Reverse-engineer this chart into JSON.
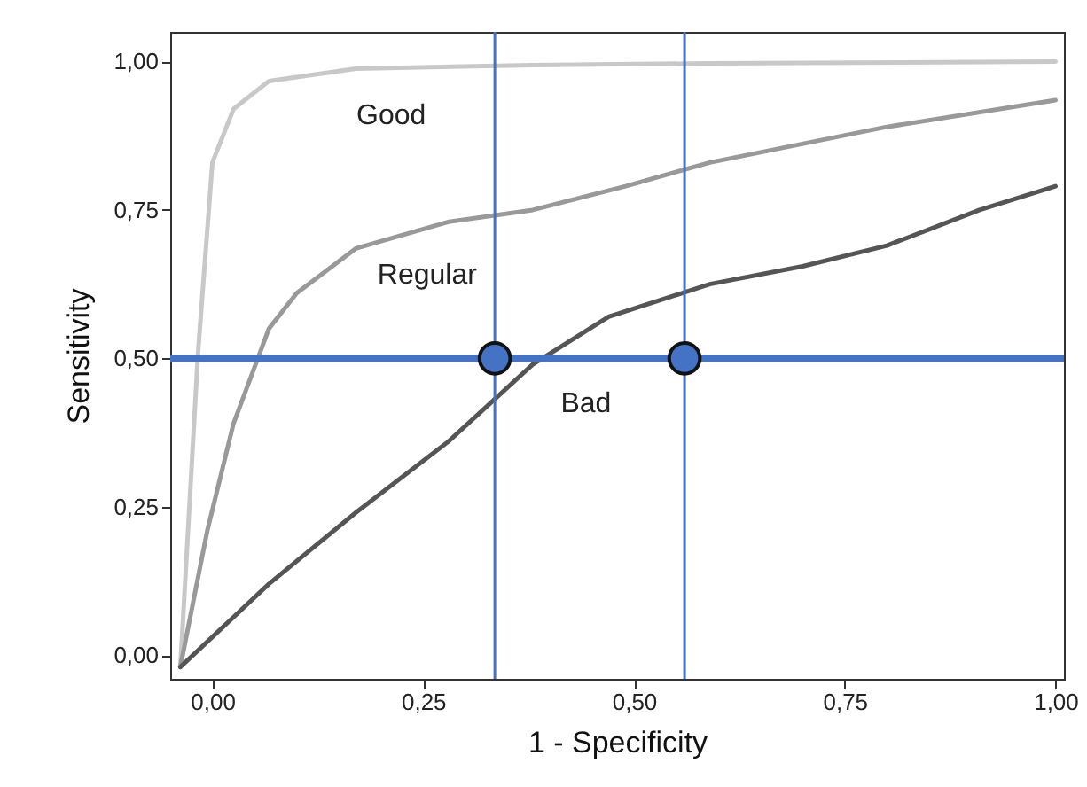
{
  "chart_data": {
    "type": "line",
    "xlabel": "1 - Specificity",
    "ylabel": "Sensitivity",
    "xlim": [
      -0.05,
      1.01
    ],
    "ylim": [
      -0.04,
      1.05
    ],
    "xticks": [
      {
        "value": 0,
        "label": "0,00"
      },
      {
        "value": 0.25,
        "label": "0,25"
      },
      {
        "value": 0.5,
        "label": "0,50"
      },
      {
        "value": 0.75,
        "label": "0,75"
      },
      {
        "value": 1,
        "label": "1,00"
      }
    ],
    "yticks": [
      {
        "value": 0,
        "label": "0,00"
      },
      {
        "value": 0.25,
        "label": "0,25"
      },
      {
        "value": 0.5,
        "label": "0,50"
      },
      {
        "value": 0.75,
        "label": "0,75"
      },
      {
        "value": 1,
        "label": "1,00"
      }
    ],
    "grid": false,
    "series": [
      {
        "name": "Good",
        "color": "#c8c8c8",
        "x": [
          -0.038,
          -0.017,
          0,
          0.025,
          0.067,
          0.17,
          0.38,
          0.59,
          1.0
        ],
        "values": [
          -0.02,
          0.51,
          0.83,
          0.92,
          0.967,
          0.988,
          0.994,
          0.997,
          1.0
        ]
      },
      {
        "name": "Regular",
        "color": "#999999",
        "x": [
          -0.038,
          -0.006,
          0.025,
          0.067,
          0.1,
          0.17,
          0.28,
          0.38,
          0.49,
          0.59,
          0.8,
          1.0
        ],
        "values": [
          -0.02,
          0.21,
          0.39,
          0.55,
          0.61,
          0.685,
          0.73,
          0.75,
          0.79,
          0.83,
          0.89,
          0.935
        ]
      },
      {
        "name": "Bad",
        "color": "#555555",
        "x": [
          -0.038,
          0.067,
          0.17,
          0.28,
          0.38,
          0.47,
          0.59,
          0.7,
          0.8,
          0.91,
          1.0
        ],
        "values": [
          -0.02,
          0.12,
          0.24,
          0.36,
          0.49,
          0.57,
          0.625,
          0.655,
          0.69,
          0.75,
          0.79
        ]
      },
      {
        "type": "scatter",
        "marker": "circle",
        "color": "#4472c4",
        "x": [
          0.335,
          0.56
        ],
        "values": [
          0.5,
          0.5
        ]
      }
    ],
    "ref_lines": [
      {
        "axis": "y",
        "value": 0.5,
        "color": "#4472c4"
      },
      {
        "axis": "x",
        "value": 0.335,
        "color": "#4472c4"
      },
      {
        "axis": "x",
        "value": 0.56,
        "color": "#4472c4"
      }
    ]
  }
}
